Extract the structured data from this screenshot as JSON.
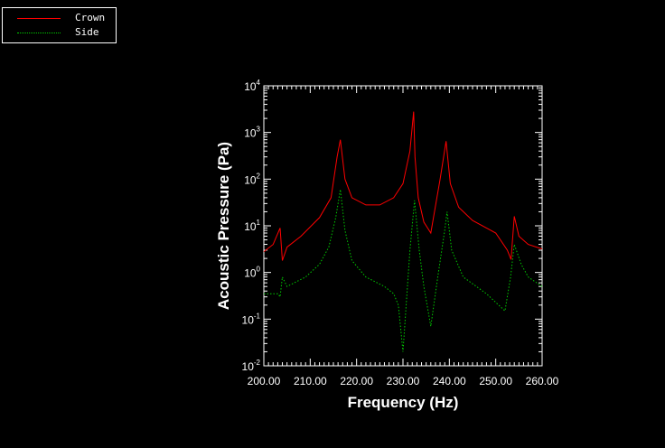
{
  "colors": {
    "background": "#000000",
    "axis": "#ffffff",
    "crown": "#ff0000",
    "side": "#00cc00"
  },
  "legend": {
    "items": [
      {
        "label": "Crown",
        "color": "#ff0000",
        "style": "solid"
      },
      {
        "label": "Side",
        "color": "#00cc00",
        "style": "dotted"
      }
    ]
  },
  "chart_data": {
    "type": "line",
    "xlabel": "Frequency (Hz)",
    "ylabel": "Acoustic Pressure (Pa)",
    "xlim": [
      200,
      260
    ],
    "ylim": [
      0.01,
      10000
    ],
    "yscale": "log",
    "grid": false,
    "legend_position": "top-left",
    "x_tick_labels": [
      "200.00",
      "210.00",
      "220.00",
      "230.00",
      "240.00",
      "250.00",
      "260.00"
    ],
    "y_tick_labels": [
      {
        "base": "10",
        "exp": "-2",
        "value": 0.01
      },
      {
        "base": "10",
        "exp": "-1",
        "value": 0.1
      },
      {
        "base": "10",
        "exp": "0",
        "value": 1
      },
      {
        "base": "10",
        "exp": "1",
        "value": 10
      },
      {
        "base": "10",
        "exp": "2",
        "value": 100
      },
      {
        "base": "10",
        "exp": "3",
        "value": 1000
      },
      {
        "base": "10",
        "exp": "4",
        "value": 10000
      }
    ],
    "series": [
      {
        "name": "Crown",
        "color": "#ff0000",
        "style": "solid",
        "x": [
          200,
          202,
          203.5,
          204,
          205,
          208,
          212,
          214.5,
          215.8,
          216.5,
          217.5,
          219,
          222,
          225,
          228,
          230,
          231.5,
          232.3,
          232.6,
          233.3,
          234.5,
          236,
          238,
          239.3,
          240.2,
          242,
          245,
          250,
          252.5,
          253.3,
          254,
          255,
          257,
          260
        ],
        "y": [
          2.8,
          4,
          9,
          1.8,
          3.5,
          6,
          15,
          40,
          300,
          700,
          100,
          40,
          28,
          28,
          40,
          80,
          400,
          2800,
          300,
          40,
          12,
          7,
          100,
          650,
          80,
          25,
          13,
          7,
          3,
          1.9,
          16,
          6,
          4,
          3.2
        ]
      },
      {
        "name": "Side",
        "color": "#00cc00",
        "style": "dotted",
        "x": [
          200,
          203,
          203.5,
          204,
          205,
          209,
          212,
          214,
          215.5,
          216.5,
          217.5,
          219,
          222,
          226,
          228,
          229,
          230,
          231.5,
          232.5,
          233.5,
          234.5,
          236,
          237.5,
          239,
          239.5,
          240.5,
          243,
          248,
          252,
          253.2,
          254,
          255.5,
          257,
          260
        ],
        "y": [
          0.35,
          0.35,
          0.3,
          0.8,
          0.5,
          0.8,
          1.5,
          3.5,
          15,
          60,
          8,
          1.8,
          0.8,
          0.5,
          0.35,
          0.2,
          0.02,
          3,
          35,
          3,
          0.5,
          0.07,
          0.8,
          8,
          20,
          3,
          0.8,
          0.35,
          0.15,
          0.8,
          4,
          1.5,
          0.8,
          0.5
        ]
      }
    ]
  }
}
